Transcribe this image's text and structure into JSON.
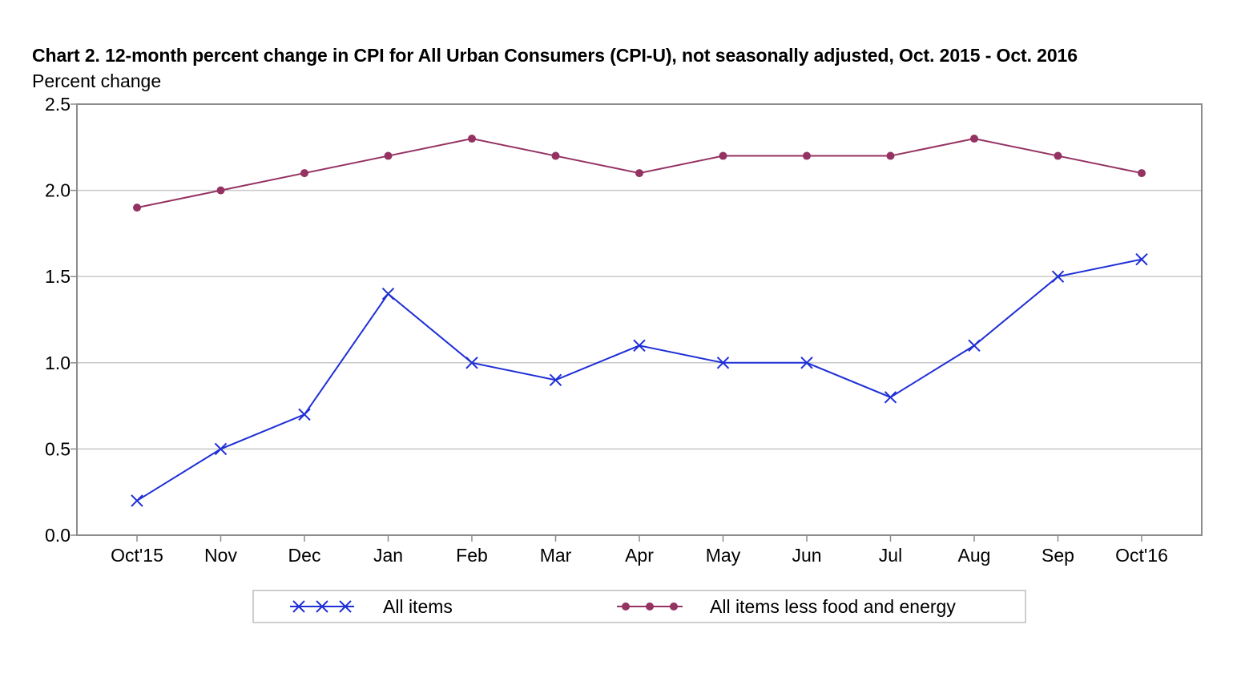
{
  "chart_data": {
    "type": "line",
    "title": "Chart 2. 12-month percent change in CPI for All Urban Consumers (CPI-U), not seasonally adjusted, Oct. 2015 - Oct. 2016",
    "subtitle": "Percent change",
    "xlabel": "",
    "ylabel": "Percent change",
    "categories": [
      "Oct'15",
      "Nov",
      "Dec",
      "Jan",
      "Feb",
      "Mar",
      "Apr",
      "May",
      "Jun",
      "Jul",
      "Aug",
      "Sep",
      "Oct'16"
    ],
    "ylim": [
      0,
      2.5
    ],
    "yticks": [
      "0.0",
      "0.5",
      "1.0",
      "1.5",
      "2.0",
      "2.5"
    ],
    "grid": true,
    "legend_position": "bottom",
    "series": [
      {
        "name": "All items",
        "values": [
          0.2,
          0.5,
          0.7,
          1.4,
          1.0,
          0.9,
          1.1,
          1.0,
          1.0,
          0.8,
          1.1,
          1.5,
          1.6
        ],
        "color": "#1f2fd6",
        "marker": "x"
      },
      {
        "name": "All items less food and energy",
        "values": [
          1.9,
          2.0,
          2.1,
          2.2,
          2.3,
          2.2,
          2.1,
          2.2,
          2.2,
          2.2,
          2.3,
          2.2,
          2.1
        ],
        "color": "#943262",
        "marker": "circle"
      }
    ]
  }
}
